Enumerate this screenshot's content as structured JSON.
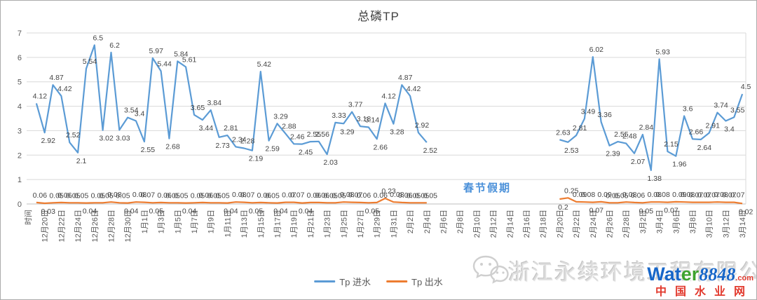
{
  "title": "总磷TP",
  "annotation": {
    "text": "春节假期",
    "color": "#4a90d9"
  },
  "legend": {
    "inflow_label": "Tp 进水",
    "outflow_label": "Tp 出水"
  },
  "colors": {
    "inflow": "#5B9BD5",
    "outflow": "#ED7D31",
    "grid": "#d9d9d9",
    "axis": "#bfbfbf",
    "text": "#595959"
  },
  "watermark": {
    "company": "浙江永续环境工程有限公司",
    "logo_wat": "Wat",
    "logo_er": "er",
    "logo_num": "8848",
    "logo_dotcom": ".com",
    "site_name": "中国水业网"
  },
  "chart_data": {
    "type": "line",
    "title": "总磷TP",
    "ylabel": "",
    "xlabel": "时间",
    "ylim": [
      0,
      7
    ],
    "y_ticks": [
      0,
      1,
      2,
      3,
      4,
      5,
      6,
      7
    ],
    "grid": true,
    "legend_position": "bottom",
    "x_tick_labels": [
      "时间",
      "12月20日",
      "12月22日",
      "12月24日",
      "12月26日",
      "12月28日",
      "12月30日",
      "1月1日",
      "1月3日",
      "1月5日",
      "1月7日",
      "1月9日",
      "1月11日",
      "1月13日",
      "1月15日",
      "1月17日",
      "1月19日",
      "1月21日",
      "1月23日",
      "1月25日",
      "1月27日",
      "1月29日",
      "1月31日",
      "2月2日",
      "2月4日",
      "2月6日",
      "2月8日",
      "2月10日",
      "2月12日",
      "2月14日",
      "2月16日",
      "2月18日",
      "2月20日",
      "2月22日",
      "2月24日",
      "2月26日",
      "2月28日",
      "3月2日",
      "3月4日",
      "3月6日",
      "3月8日",
      "3月10日",
      "3月12日",
      "3月14日"
    ],
    "note": "daily data starting 12月19日; gap 2月5日–2月19日 (春节假期, no data)",
    "series": [
      {
        "name": "Tp 进水",
        "color": "#5B9BD5",
        "segments": [
          {
            "start_day": 0,
            "values": [
              4.12,
              2.92,
              4.87,
              4.42,
              2.52,
              2.1,
              5.54,
              6.5,
              3.02,
              6.2,
              3.03,
              3.54,
              3.4,
              2.55,
              5.97,
              5.44,
              2.68,
              5.84,
              5.61,
              3.65,
              3.44,
              3.84,
              2.73,
              2.81,
              2.34,
              2.28,
              2.19,
              5.42,
              2.59,
              3.29,
              2.88,
              2.46,
              2.45,
              2.55,
              2.56,
              2.03,
              3.33,
              3.29,
              3.77,
              3.18,
              3.14,
              2.66,
              4.12,
              3.28,
              4.87,
              4.42,
              2.92,
              2.52
            ]
          },
          {
            "start_day": 63,
            "values": [
              2.63,
              2.53,
              2.81,
              3.49,
              6.02,
              3.36,
              2.39,
              2.55,
              2.48,
              2.07,
              2.84,
              1.38,
              5.93,
              2.15,
              1.96,
              3.6,
              2.66,
              2.64,
              2.91,
              3.74,
              3.4,
              3.55,
              4.5
            ]
          }
        ]
      },
      {
        "name": "Tp 出水",
        "color": "#ED7D31",
        "segments": [
          {
            "start_day": 0,
            "values": [
              0.06,
              0.03,
              0.05,
              0.06,
              0.05,
              0.05,
              0.04,
              0.05,
              0.05,
              0.08,
              0.05,
              0.04,
              0.08,
              0.07,
              0.05,
              0.06,
              0.05,
              0.05,
              0.04,
              0.05,
              0.06,
              0.05,
              0.05,
              0.04,
              0.08,
              0.07,
              0.05,
              0.06,
              0.05,
              0.04,
              0.07,
              0.07,
              0.04,
              0.06,
              0.06,
              0.05,
              0.05,
              0.08,
              0.07,
              0.06,
              0.05,
              0.06,
              0.23,
              0.08,
              0.06,
              0.05,
              0.05,
              0.05
            ]
          },
          {
            "start_day": 63,
            "values": [
              0.2,
              0.25,
              0.09,
              0.08,
              0.07,
              0.09,
              0.05,
              0.05,
              0.08,
              0.06,
              0.05,
              0.08,
              0.08,
              0.07,
              0.09,
              0.08,
              0.07,
              0.07,
              0.07,
              0.08,
              0.07,
              0.07,
              0.02
            ]
          }
        ]
      }
    ]
  }
}
